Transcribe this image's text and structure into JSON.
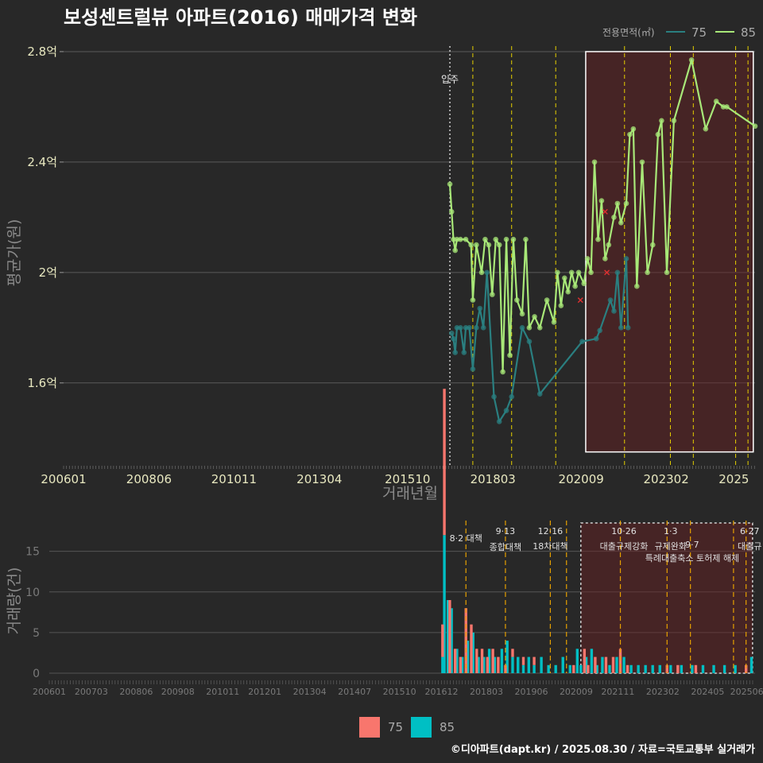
{
  "title": "보성센트럴뷰 아파트(2016) 매매가격 변화",
  "footer": "©디아파트(dapt.kr) / 2025.08.30 / 자료=국토교통부 실거래가",
  "legend": {
    "title": "전용면적(㎡)",
    "items": [
      {
        "label": "75",
        "color": "#2a7f80"
      },
      {
        "label": "85",
        "color": "#a8e878"
      }
    ]
  },
  "bottom_legend": [
    {
      "label": "75",
      "color": "#f8766d"
    },
    {
      "label": "85",
      "color": "#00bfc4"
    }
  ],
  "chart_data": [
    {
      "type": "line",
      "xlabel": "거래년월",
      "ylabel": "평균가(원)",
      "x_ticks": [
        "200601",
        "200806",
        "201011",
        "201304",
        "201510",
        "201803",
        "202009",
        "202302",
        "2025"
      ],
      "y_ticks": [
        "1.6억",
        "2억",
        "2.4억",
        "2.8억"
      ],
      "ylim": [
        1.3,
        2.82
      ],
      "annotation": "입주",
      "series": [
        {
          "name": "75",
          "color": "#2a7f80",
          "points": [
            [
              2017.0,
              1.78
            ],
            [
              2017.05,
              1.76
            ],
            [
              2017.1,
              1.71
            ],
            [
              2017.15,
              1.8
            ],
            [
              2017.25,
              1.8
            ],
            [
              2017.35,
              1.71
            ],
            [
              2017.4,
              1.8
            ],
            [
              2017.5,
              1.8
            ],
            [
              2017.6,
              1.65
            ],
            [
              2017.7,
              1.8
            ],
            [
              2017.8,
              1.87
            ],
            [
              2017.9,
              1.8
            ],
            [
              2018.0,
              2.0
            ],
            [
              2018.2,
              1.55
            ],
            [
              2018.35,
              1.46
            ],
            [
              2018.55,
              1.5
            ],
            [
              2018.7,
              1.55
            ],
            [
              2019.0,
              1.8
            ],
            [
              2019.2,
              1.75
            ],
            [
              2019.5,
              1.56
            ],
            [
              2020.7,
              1.75
            ],
            [
              2021.1,
              1.76
            ],
            [
              2021.2,
              1.79
            ],
            [
              2021.5,
              1.9
            ],
            [
              2021.6,
              1.86
            ],
            [
              2021.7,
              2.0
            ],
            [
              2021.8,
              1.8
            ],
            [
              2021.95,
              2.05
            ],
            [
              2022.0,
              1.8
            ]
          ]
        },
        {
          "name": "85",
          "color": "#a8e878",
          "points": [
            [
              2016.95,
              2.32
            ],
            [
              2017.0,
              2.22
            ],
            [
              2017.05,
              2.12
            ],
            [
              2017.1,
              2.08
            ],
            [
              2017.15,
              2.12
            ],
            [
              2017.25,
              2.12
            ],
            [
              2017.4,
              2.12
            ],
            [
              2017.55,
              2.1
            ],
            [
              2017.6,
              1.9
            ],
            [
              2017.7,
              2.1
            ],
            [
              2017.85,
              2.0
            ],
            [
              2017.95,
              2.12
            ],
            [
              2018.05,
              2.1
            ],
            [
              2018.15,
              1.92
            ],
            [
              2018.25,
              2.12
            ],
            [
              2018.35,
              2.1
            ],
            [
              2018.45,
              1.64
            ],
            [
              2018.55,
              2.12
            ],
            [
              2018.65,
              1.7
            ],
            [
              2018.75,
              2.12
            ],
            [
              2018.85,
              1.9
            ],
            [
              2019.0,
              1.85
            ],
            [
              2019.1,
              2.12
            ],
            [
              2019.2,
              1.8
            ],
            [
              2019.35,
              1.84
            ],
            [
              2019.5,
              1.8
            ],
            [
              2019.7,
              1.9
            ],
            [
              2019.9,
              1.82
            ],
            [
              2020.0,
              2.0
            ],
            [
              2020.1,
              1.88
            ],
            [
              2020.2,
              1.98
            ],
            [
              2020.3,
              1.93
            ],
            [
              2020.4,
              2.0
            ],
            [
              2020.5,
              1.95
            ],
            [
              2020.6,
              2.0
            ],
            [
              2020.75,
              1.96
            ],
            [
              2020.85,
              2.05
            ],
            [
              2020.95,
              2.0
            ],
            [
              2021.05,
              2.4
            ],
            [
              2021.15,
              2.12
            ],
            [
              2021.25,
              2.26
            ],
            [
              2021.35,
              2.05
            ],
            [
              2021.45,
              2.1
            ],
            [
              2021.6,
              2.2
            ],
            [
              2021.7,
              2.25
            ],
            [
              2021.8,
              2.18
            ],
            [
              2021.95,
              2.25
            ],
            [
              2022.05,
              2.5
            ],
            [
              2022.15,
              2.52
            ],
            [
              2022.25,
              1.95
            ],
            [
              2022.4,
              2.4
            ],
            [
              2022.55,
              2.0
            ],
            [
              2022.7,
              2.1
            ],
            [
              2022.85,
              2.5
            ],
            [
              2022.95,
              2.55
            ],
            [
              2023.1,
              2.0
            ],
            [
              2023.3,
              2.55
            ],
            [
              2023.8,
              2.77
            ],
            [
              2024.2,
              2.52
            ],
            [
              2024.5,
              2.62
            ],
            [
              2024.7,
              2.6
            ],
            [
              2024.8,
              2.6
            ],
            [
              2025.6,
              2.53
            ]
          ]
        }
      ]
    },
    {
      "type": "bar",
      "ylabel": "거래량(건)",
      "x_ticks": [
        "200601",
        "200703",
        "200806",
        "200908",
        "201011",
        "201201",
        "201304",
        "201407",
        "201510",
        "201612",
        "201803",
        "201906",
        "202009",
        "202111",
        "202302",
        "202405",
        "202506"
      ],
      "y_ticks": [
        "0",
        "5",
        "10",
        "15"
      ],
      "ylim": [
        0,
        18
      ],
      "policies": [
        {
          "label": "8·2 대책",
          "line1": "8·2 대책",
          "line2": ""
        },
        {
          "line1": "9·13",
          "line2": "종합대책"
        },
        {
          "line1": "12·16",
          "line2": "18차대책"
        },
        {
          "line1": "10·26",
          "line2": "대출규제강화"
        },
        {
          "line1": "1·3",
          "line2": "규제완화"
        },
        {
          "line1": "9·7",
          "line2": "특례대출축소 토허제 해제"
        },
        {
          "line1": "6·27",
          "line2": "대출규"
        }
      ],
      "series": [
        {
          "name": "75",
          "color": "#f8766d",
          "values": [
            [
              2016.95,
              4
            ],
            [
              2017.0,
              18
            ],
            [
              2017.15,
              9
            ],
            [
              2017.3,
              3
            ],
            [
              2017.45,
              2
            ],
            [
              2017.6,
              8
            ],
            [
              2017.75,
              6
            ],
            [
              2017.9,
              3
            ],
            [
              2018.05,
              3
            ],
            [
              2018.2,
              2
            ],
            [
              2018.35,
              3
            ],
            [
              2018.5,
              2
            ],
            [
              2018.7,
              1
            ],
            [
              2018.9,
              1
            ],
            [
              2019.2,
              1
            ],
            [
              2019.5,
              1
            ],
            [
              2020.6,
              1
            ],
            [
              2020.9,
              3
            ],
            [
              2021.0,
              1
            ],
            [
              2021.2,
              2
            ],
            [
              2021.5,
              2
            ],
            [
              2021.7,
              2
            ],
            [
              2021.9,
              3
            ],
            [
              2022.1,
              1
            ],
            [
              2023.2,
              1
            ],
            [
              2023.5,
              1
            ],
            [
              2024.0,
              1
            ],
            [
              2025.4,
              1
            ]
          ]
        },
        {
          "name": "85",
          "color": "#00bfc4",
          "values": [
            [
              2016.95,
              2
            ],
            [
              2017.0,
              17
            ],
            [
              2017.1,
              9
            ],
            [
              2017.2,
              8
            ],
            [
              2017.35,
              3
            ],
            [
              2017.5,
              2
            ],
            [
              2017.65,
              4
            ],
            [
              2017.8,
              5
            ],
            [
              2017.95,
              2
            ],
            [
              2018.1,
              2
            ],
            [
              2018.25,
              3
            ],
            [
              2018.4,
              2
            ],
            [
              2018.6,
              3
            ],
            [
              2018.75,
              4
            ],
            [
              2018.9,
              2
            ],
            [
              2019.05,
              2
            ],
            [
              2019.2,
              1
            ],
            [
              2019.35,
              2
            ],
            [
              2019.5,
              1
            ],
            [
              2019.7,
              2
            ],
            [
              2019.9,
              1
            ],
            [
              2020.1,
              1
            ],
            [
              2020.3,
              2
            ],
            [
              2020.5,
              1
            ],
            [
              2020.7,
              3
            ],
            [
              2020.8,
              1
            ],
            [
              2020.95,
              2
            ],
            [
              2021.1,
              3
            ],
            [
              2021.25,
              1
            ],
            [
              2021.4,
              2
            ],
            [
              2021.6,
              1
            ],
            [
              2021.8,
              2
            ],
            [
              2022.0,
              2
            ],
            [
              2022.2,
              1
            ],
            [
              2022.4,
              1
            ],
            [
              2022.6,
              1
            ],
            [
              2022.8,
              1
            ],
            [
              2023.0,
              1
            ],
            [
              2023.3,
              1
            ],
            [
              2023.6,
              1
            ],
            [
              2023.9,
              1
            ],
            [
              2024.2,
              1
            ],
            [
              2024.5,
              1
            ],
            [
              2024.8,
              1
            ],
            [
              2025.1,
              1
            ],
            [
              2025.55,
              2
            ]
          ]
        }
      ]
    }
  ]
}
